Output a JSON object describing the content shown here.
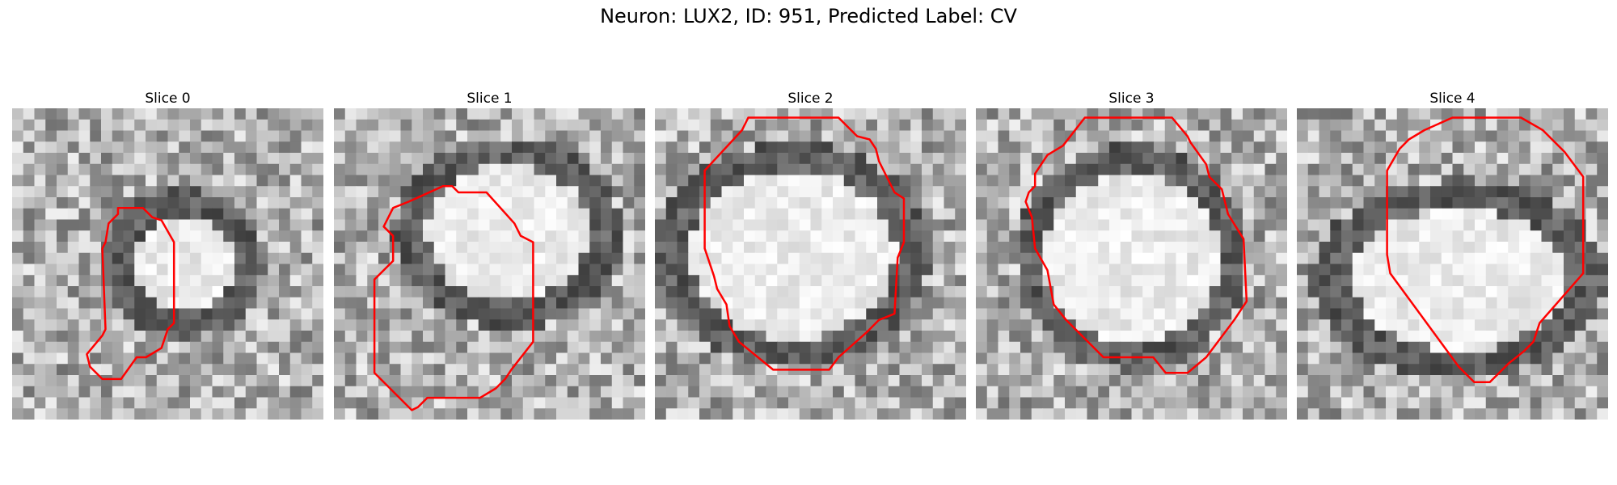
{
  "figure": {
    "title": "Neuron: LUX2, ID: 951, Predicted Label: CV"
  },
  "colors": {
    "contour": "#ff0000"
  },
  "panels": [
    {
      "title": "Slice 0",
      "image": "grayscale-micrograph-small-bright-soma",
      "contour": [
        [
          0.34,
          0.32
        ],
        [
          0.42,
          0.32
        ],
        [
          0.45,
          0.35
        ],
        [
          0.48,
          0.36
        ],
        [
          0.52,
          0.43
        ],
        [
          0.52,
          0.69
        ],
        [
          0.5,
          0.71
        ],
        [
          0.48,
          0.77
        ],
        [
          0.43,
          0.8
        ],
        [
          0.4,
          0.8
        ],
        [
          0.35,
          0.87
        ],
        [
          0.29,
          0.87
        ],
        [
          0.25,
          0.83
        ],
        [
          0.24,
          0.79
        ],
        [
          0.29,
          0.73
        ],
        [
          0.3,
          0.71
        ],
        [
          0.29,
          0.45
        ],
        [
          0.3,
          0.43
        ],
        [
          0.31,
          0.37
        ],
        [
          0.34,
          0.34
        ]
      ]
    },
    {
      "title": "Slice 1",
      "image": "grayscale-micrograph-elongated-soma",
      "contour": [
        [
          0.24,
          0.3
        ],
        [
          0.35,
          0.25
        ],
        [
          0.38,
          0.25
        ],
        [
          0.4,
          0.27
        ],
        [
          0.49,
          0.27
        ],
        [
          0.58,
          0.37
        ],
        [
          0.6,
          0.41
        ],
        [
          0.64,
          0.43
        ],
        [
          0.64,
          0.75
        ],
        [
          0.57,
          0.84
        ],
        [
          0.55,
          0.87
        ],
        [
          0.52,
          0.9
        ],
        [
          0.47,
          0.93
        ],
        [
          0.3,
          0.93
        ],
        [
          0.27,
          0.96
        ],
        [
          0.25,
          0.97
        ],
        [
          0.13,
          0.85
        ],
        [
          0.13,
          0.55
        ],
        [
          0.19,
          0.49
        ],
        [
          0.19,
          0.41
        ],
        [
          0.16,
          0.38
        ],
        [
          0.19,
          0.32
        ]
      ]
    },
    {
      "title": "Slice 2",
      "image": "grayscale-micrograph-large-bright-soma",
      "contour": [
        [
          0.28,
          0.07
        ],
        [
          0.3,
          0.03
        ],
        [
          0.59,
          0.03
        ],
        [
          0.65,
          0.09
        ],
        [
          0.69,
          0.1
        ],
        [
          0.71,
          0.13
        ],
        [
          0.72,
          0.17
        ],
        [
          0.77,
          0.27
        ],
        [
          0.8,
          0.29
        ],
        [
          0.8,
          0.43
        ],
        [
          0.78,
          0.48
        ],
        [
          0.77,
          0.66
        ],
        [
          0.72,
          0.68
        ],
        [
          0.7,
          0.7
        ],
        [
          0.68,
          0.72
        ],
        [
          0.59,
          0.8
        ],
        [
          0.56,
          0.84
        ],
        [
          0.38,
          0.84
        ],
        [
          0.27,
          0.75
        ],
        [
          0.24,
          0.7
        ],
        [
          0.23,
          0.63
        ],
        [
          0.2,
          0.58
        ],
        [
          0.19,
          0.54
        ],
        [
          0.16,
          0.45
        ],
        [
          0.16,
          0.2
        ]
      ]
    },
    {
      "title": "Slice 3",
      "image": "grayscale-micrograph-round-soma",
      "contour": [
        [
          0.28,
          0.12
        ],
        [
          0.35,
          0.03
        ],
        [
          0.63,
          0.03
        ],
        [
          0.68,
          0.09
        ],
        [
          0.69,
          0.11
        ],
        [
          0.74,
          0.18
        ],
        [
          0.75,
          0.22
        ],
        [
          0.79,
          0.26
        ],
        [
          0.81,
          0.34
        ],
        [
          0.86,
          0.42
        ],
        [
          0.87,
          0.62
        ],
        [
          0.83,
          0.68
        ],
        [
          0.74,
          0.8
        ],
        [
          0.68,
          0.85
        ],
        [
          0.61,
          0.85
        ],
        [
          0.57,
          0.8
        ],
        [
          0.41,
          0.8
        ],
        [
          0.33,
          0.72
        ],
        [
          0.29,
          0.68
        ],
        [
          0.25,
          0.63
        ],
        [
          0.23,
          0.52
        ],
        [
          0.19,
          0.45
        ],
        [
          0.18,
          0.35
        ],
        [
          0.16,
          0.3
        ],
        [
          0.17,
          0.27
        ],
        [
          0.19,
          0.25
        ],
        [
          0.19,
          0.21
        ],
        [
          0.23,
          0.15
        ]
      ]
    },
    {
      "title": "Slice 4",
      "image": "grayscale-micrograph-offset-soma",
      "contour": [
        [
          0.41,
          0.07
        ],
        [
          0.5,
          0.03
        ],
        [
          0.72,
          0.03
        ],
        [
          0.79,
          0.07
        ],
        [
          0.86,
          0.14
        ],
        [
          0.92,
          0.22
        ],
        [
          0.92,
          0.53
        ],
        [
          0.78,
          0.69
        ],
        [
          0.76,
          0.75
        ],
        [
          0.73,
          0.78
        ],
        [
          0.68,
          0.82
        ],
        [
          0.62,
          0.88
        ],
        [
          0.57,
          0.88
        ],
        [
          0.52,
          0.83
        ],
        [
          0.3,
          0.53
        ],
        [
          0.29,
          0.47
        ],
        [
          0.29,
          0.2
        ],
        [
          0.33,
          0.13
        ],
        [
          0.36,
          0.1
        ]
      ]
    }
  ]
}
